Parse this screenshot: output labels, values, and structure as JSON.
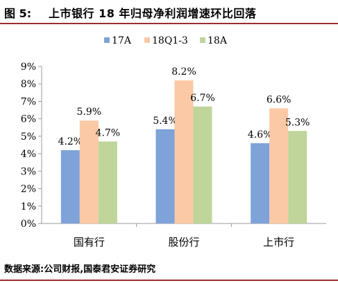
{
  "header": {
    "figure_label": "图 5:",
    "title": "上市银行 18 年归母净利润增速环比回落"
  },
  "footer": {
    "source": "数据来源:公司财报,国泰君安证券研究"
  },
  "chart_data": {
    "type": "bar",
    "title": "",
    "xlabel": "",
    "ylabel": "",
    "categories": [
      "国有行",
      "股份行",
      "上市行"
    ],
    "series": [
      {
        "name": "17A",
        "values": [
          4.2,
          5.4,
          4.6
        ],
        "labels": [
          "4.2%",
          "5.4%",
          "4.6%"
        ],
        "color": "#7fa2d9"
      },
      {
        "name": "18Q1-3",
        "values": [
          5.9,
          8.2,
          6.6
        ],
        "labels": [
          "5.9%",
          "8.2%",
          "6.6%"
        ],
        "color": "#fbc9a5"
      },
      {
        "name": "18A",
        "values": [
          4.7,
          6.7,
          5.3
        ],
        "labels": [
          "4.7%",
          "6.7%",
          "5.3%"
        ],
        "color": "#bfd59a"
      }
    ],
    "ylim": [
      0,
      9
    ],
    "yticks": [
      "0%",
      "1%",
      "2%",
      "3%",
      "4%",
      "5%",
      "6%",
      "7%",
      "8%",
      "9%"
    ],
    "legend_position": "top",
    "grid": false
  }
}
